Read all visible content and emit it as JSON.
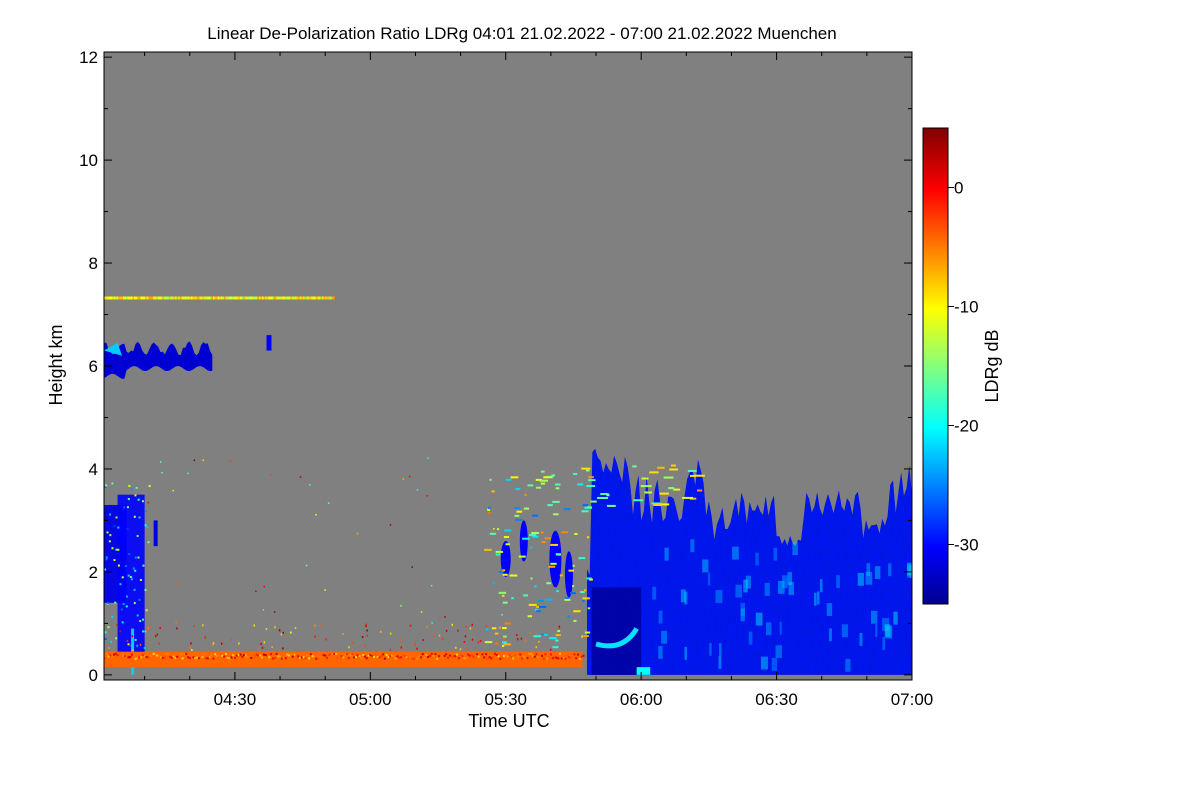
{
  "chart_data": {
    "type": "heatmap",
    "title": "Linear De-Polarization Ratio LDRg   04:01 21.02.2022 - 07:00 21.02.2022 Muenchen",
    "xlabel": "Time UTC",
    "ylabel": "Height km",
    "x_range_minutes": [
      241,
      420
    ],
    "x_ticks": [
      {
        "minutes": 270,
        "label": "04:30"
      },
      {
        "minutes": 300,
        "label": "05:00"
      },
      {
        "minutes": 330,
        "label": "05:30"
      },
      {
        "minutes": 360,
        "label": "06:00"
      },
      {
        "minutes": 390,
        "label": "06:30"
      },
      {
        "minutes": 420,
        "label": "07:00"
      }
    ],
    "y_range": [
      -0.1,
      12.1
    ],
    "y_ticks": [
      0,
      2,
      4,
      6,
      8,
      10,
      12
    ],
    "background_color": "#808080",
    "colorbar": {
      "label": "LDRg dB",
      "range": [
        -35,
        5
      ],
      "ticks": [
        0,
        -10,
        -20,
        -30
      ],
      "colormap": "jet"
    },
    "features": [
      {
        "name": "near-surface layer",
        "t_start": 241,
        "t_end": 347,
        "h_bottom": 0.15,
        "h_top": 0.45,
        "ldr": -5
      },
      {
        "name": "cirrus band",
        "t_start": 241,
        "t_end": 265,
        "h_bottom": 5.8,
        "h_top": 6.5,
        "ldr": -31
      },
      {
        "name": "thin layer",
        "t_start": 241,
        "t_end": 292,
        "h_bottom": 7.3,
        "h_top": 7.35,
        "ldr": -12
      },
      {
        "name": "early low cloud",
        "t_start": 241,
        "t_end": 251,
        "h_bottom": 0.2,
        "h_top": 3.8,
        "ldr": -30
      },
      {
        "name": "cloud system",
        "t_start": 348,
        "t_end": 420,
        "h_bottom": 0.0,
        "h_top": 4.4,
        "ldr": -29
      }
    ]
  }
}
